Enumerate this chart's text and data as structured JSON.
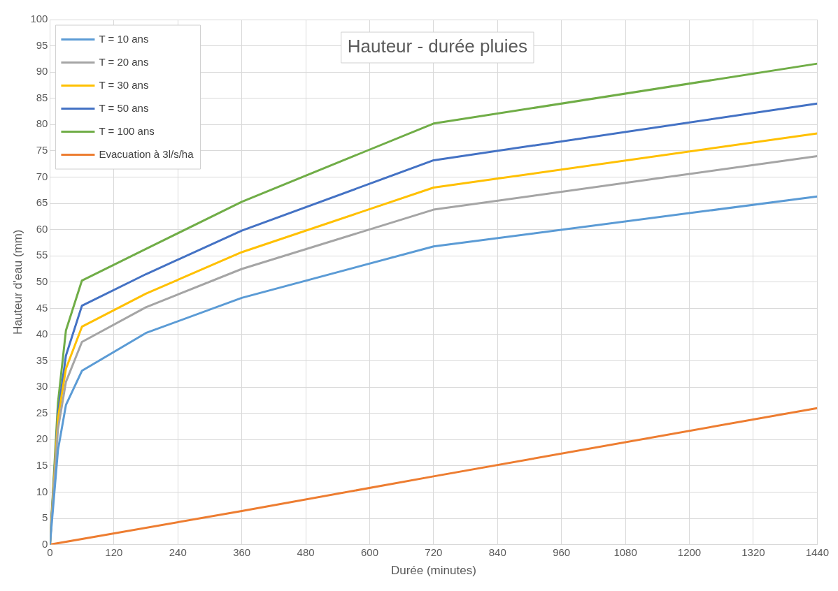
{
  "chart_data": {
    "type": "line",
    "title": "Hauteur - durée pluies",
    "xlabel": "Durée (minutes)",
    "ylabel": "Hauteur d'eau (mm)",
    "x": [
      0,
      15,
      30,
      60,
      180,
      360,
      720,
      1440
    ],
    "series": [
      {
        "name": "T = 10 ans",
        "color": "#5b9bd5",
        "values": [
          0,
          18,
          26.6,
          33.1,
          40.3,
          47,
          56.8,
          66.3
        ]
      },
      {
        "name": "T = 20 ans",
        "color": "#a5a5a5",
        "values": [
          0,
          22,
          31,
          38.6,
          45.2,
          52.5,
          63.8,
          74
        ]
      },
      {
        "name": "T = 30 ans",
        "color": "#ffc000",
        "values": [
          0,
          24,
          33.5,
          41.5,
          47.8,
          55.7,
          68,
          78.3
        ]
      },
      {
        "name": "T = 50 ans",
        "color": "#4472c4",
        "values": [
          0,
          25,
          36,
          45.5,
          51.5,
          59.8,
          73.2,
          84
        ]
      },
      {
        "name": "T = 100 ans",
        "color": "#70ad47",
        "values": [
          0,
          27,
          40.8,
          50.3,
          56.3,
          65.3,
          80.2,
          91.6
        ]
      },
      {
        "name": "Evacuation à 3l/s/ha",
        "color": "#ed7d31",
        "x": [
          0,
          360,
          720,
          1440
        ],
        "values": [
          0,
          6.4,
          13,
          26
        ]
      }
    ],
    "xlim": [
      0,
      1440
    ],
    "xticks": [
      0,
      120,
      240,
      360,
      480,
      600,
      720,
      840,
      960,
      1080,
      1200,
      1320,
      1440
    ],
    "ylim": [
      0,
      100
    ],
    "yticks": [
      0,
      5,
      10,
      15,
      20,
      25,
      30,
      35,
      40,
      45,
      50,
      55,
      60,
      65,
      70,
      75,
      80,
      85,
      90,
      95,
      100
    ],
    "grid": true,
    "legend": "top left",
    "marker": "none",
    "line_style": "solid"
  }
}
